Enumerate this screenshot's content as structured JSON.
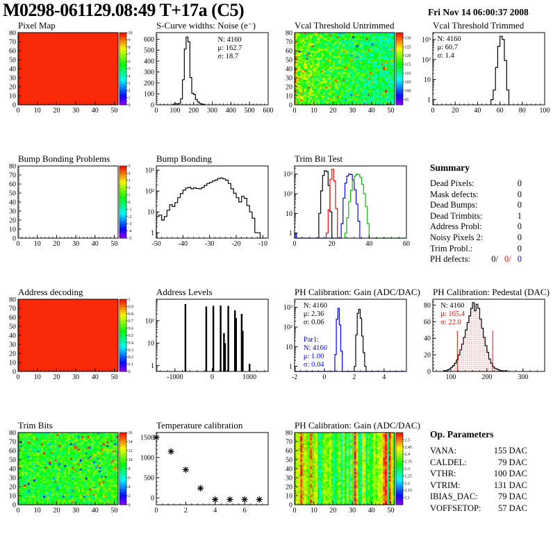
{
  "header": {
    "title": "M0298-061129.08:49 T+17a (C5)",
    "date": "Fri Nov 14 06:00:37 2008"
  },
  "colors": {
    "black": "#000000",
    "red": "#ff0000",
    "blue": "#0000ff",
    "green": "#00bf00"
  },
  "chart_data": [
    {
      "name": "pixel-map",
      "title": "Pixel Map",
      "type": "heatmap",
      "xlim": [
        0,
        52
      ],
      "ylim": [
        0,
        80
      ],
      "xticks": [
        0,
        10,
        20,
        30,
        40,
        50
      ],
      "xminor": 2,
      "yticks": [
        0,
        10,
        20,
        30,
        40,
        50,
        60,
        70,
        80
      ],
      "yminorstep": 2,
      "zmin": 0,
      "zmax": 10,
      "colorbar_ticks": [
        0,
        1,
        2,
        3,
        4,
        5,
        6,
        7,
        8,
        9,
        10
      ],
      "pattern": {
        "kind": "solid",
        "value": 0.97
      }
    },
    {
      "name": "scurve-noise",
      "title": "S-Curve widths: Noise (e⁻)",
      "type": "hist",
      "xlim": [
        0,
        600
      ],
      "xticks": [
        0,
        100,
        200,
        300,
        400,
        500,
        600
      ],
      "xminor": 20,
      "ylin": [
        0,
        660
      ],
      "yticks": [
        0,
        100,
        200,
        300,
        400,
        500,
        600
      ],
      "yminor": 20,
      "series": [
        {
          "color": "#000000",
          "start": 90,
          "width": 10,
          "values": [
            6,
            10,
            8,
            14,
            55,
            230,
            510,
            620,
            575,
            250,
            105,
            95,
            50,
            28,
            14,
            7,
            3
          ]
        }
      ],
      "stats": {
        "x": 0.55,
        "y": 0.04,
        "lines": [
          {
            "text": "N: 4160",
            "color": "#000000"
          },
          {
            "text": "μ: 162.7",
            "color": "#000000"
          },
          {
            "text": "σ: 18.7",
            "color": "#000000"
          }
        ]
      }
    },
    {
      "name": "vcal-threshold-untrimmed",
      "title": "Vcal Threshold Untrimmed",
      "type": "heatmap",
      "xlim": [
        0,
        52
      ],
      "ylim": [
        0,
        80
      ],
      "xticks": [
        0,
        10,
        20,
        30,
        40,
        50
      ],
      "xminor": 2,
      "yticks": [
        0,
        10,
        20,
        30,
        40,
        50,
        60,
        70,
        80
      ],
      "yminorstep": 2,
      "zmin": 92,
      "zmax": 133,
      "colorbar_ticks": [
        95,
        100,
        105,
        110,
        115,
        120,
        125,
        130
      ],
      "pattern": {
        "kind": "noise",
        "seed": 42,
        "mean": 0.55,
        "spread": 0.16,
        "xslope": -0.18,
        "outlier": 0.035,
        "edge": true
      }
    },
    {
      "name": "vcal-threshold-trimmed",
      "title": "Vcal Threshold Trimmed",
      "type": "hist",
      "xlim": [
        0,
        100
      ],
      "xticks": [
        0,
        20,
        40,
        60,
        80,
        100
      ],
      "xminor": 4,
      "ylog": [
        0.55,
        2200
      ],
      "yticks_log": [
        [
          1,
          "1"
        ],
        [
          10,
          "10"
        ],
        [
          100,
          "10²"
        ],
        [
          1000,
          "10³"
        ]
      ],
      "series": [
        {
          "color": "#000000",
          "start": 52,
          "width": 2,
          "values": [
            1,
            3,
            40,
            450,
            1450,
            1000,
            90,
            3
          ]
        }
      ],
      "stats": {
        "x": 0.04,
        "y": 0.03,
        "lines": [
          {
            "text": "N: 4160",
            "color": "#000000"
          },
          {
            "text": "μ: 60.7",
            "color": "#000000"
          },
          {
            "text": "σ:  1.4",
            "color": "#000000"
          }
        ]
      }
    },
    {
      "name": "bump-bonding-problems",
      "title": "Bump Bonding Problems",
      "type": "heatmap",
      "xlim": [
        0,
        52
      ],
      "ylim": [
        0,
        80
      ],
      "xticks": [
        0,
        10,
        20,
        30,
        40,
        50
      ],
      "xminor": 2,
      "yticks": [
        0,
        10,
        20,
        30,
        40,
        50,
        60,
        70,
        80
      ],
      "yminorstep": 2,
      "zmin": -5,
      "zmax": 5,
      "colorbar_ticks": [
        -5,
        -4,
        -3,
        -2,
        -1,
        0,
        1,
        2,
        3,
        4,
        5
      ],
      "pattern": {
        "kind": "empty"
      }
    },
    {
      "name": "bump-bonding",
      "title": "Bump Bonding",
      "type": "hist",
      "xlim": [
        -50,
        -8
      ],
      "xticks": [
        -50,
        -40,
        -30,
        -20,
        -10
      ],
      "xminor": 2,
      "ylog": [
        0.55,
        1600
      ],
      "yticks_log": [
        [
          1,
          "1"
        ],
        [
          10,
          "10"
        ],
        [
          100,
          "10²"
        ],
        [
          1000,
          "10³"
        ]
      ],
      "series": [
        {
          "color": "#000000",
          "start": -50,
          "width": 1,
          "values": [
            6,
            7,
            4,
            6,
            12,
            22,
            18,
            28,
            48,
            75,
            110,
            140,
            150,
            128,
            142,
            132,
            128,
            148,
            185,
            230,
            260,
            300,
            335,
            400,
            425,
            380,
            330,
            230,
            128,
            78,
            48,
            30,
            55,
            45,
            20,
            10,
            5,
            1,
            1
          ]
        }
      ]
    },
    {
      "name": "trim-bit-test",
      "title": "Trim Bit Test",
      "type": "hist",
      "xlim": [
        0,
        60
      ],
      "xticks": [
        0,
        20,
        40,
        60
      ],
      "xminor": 4,
      "ylog": [
        0.55,
        2600
      ],
      "yticks_log": [
        [
          1,
          "1"
        ],
        [
          10,
          "10"
        ],
        [
          100,
          "10²"
        ],
        [
          1000,
          "10³"
        ]
      ],
      "series": [
        {
          "color": "#000000",
          "start": 13,
          "width": 1,
          "values": [
            10,
            140,
            850,
            1500,
            1350,
            260,
            12
          ]
        },
        {
          "color": "#ff0000",
          "start": 17,
          "width": 1,
          "values": [
            1,
            15,
            550,
            1750,
            450,
            18
          ]
        },
        {
          "color": "#0000ff",
          "start": 0,
          "width": 1,
          "values": [
            1,
            0,
            0,
            0,
            0,
            0,
            0,
            0,
            0,
            0,
            0,
            0,
            0,
            0,
            0,
            0,
            0,
            0,
            0,
            0,
            0,
            0,
            0,
            0,
            0,
            3,
            60,
            350,
            800,
            1000,
            950,
            500,
            160,
            30,
            4,
            0
          ]
        },
        {
          "color": "#00bf00",
          "start": 27,
          "width": 1,
          "values": [
            1,
            6,
            40,
            150,
            420,
            800,
            1000,
            930,
            680,
            300,
            100,
            22,
            3,
            0,
            0,
            0,
            0,
            0,
            0,
            0,
            0,
            0,
            0,
            0,
            0,
            0,
            0,
            0,
            0,
            0,
            0,
            0,
            0
          ]
        }
      ]
    },
    {
      "name": "address-decoding",
      "title": "Address decoding",
      "type": "heatmap",
      "xlim": [
        0,
        52
      ],
      "ylim": [
        0,
        80
      ],
      "xticks": [
        0,
        10,
        20,
        30,
        40,
        50
      ],
      "xminor": 2,
      "yticks": [
        0,
        10,
        20,
        30,
        40,
        50,
        60,
        70,
        80
      ],
      "yminorstep": 2,
      "zmin": 0,
      "zmax": 1,
      "colorbar_ticks": [
        0,
        0.1,
        0.2,
        0.3,
        0.4,
        0.5,
        0.6,
        0.7,
        0.8,
        0.9,
        1
      ],
      "pattern": {
        "kind": "solid",
        "value": 0.97
      }
    },
    {
      "name": "address-levels",
      "title": "Address Levels",
      "type": "spikes",
      "xlim": [
        -1500,
        1500
      ],
      "xticks": [
        -1000,
        0,
        1000
      ],
      "xminor": 200,
      "ylog": [
        0.55,
        900
      ],
      "yticks_log": [
        [
          1,
          "1"
        ],
        [
          10,
          "10"
        ],
        [
          100,
          "10²"
        ]
      ],
      "spikes": [
        [
          -720,
          550
        ],
        [
          -160,
          430
        ],
        [
          30,
          460
        ],
        [
          225,
          470
        ],
        [
          315,
          28
        ],
        [
          345,
          10
        ],
        [
          430,
          450
        ],
        [
          610,
          290
        ],
        [
          640,
          130
        ],
        [
          790,
          200
        ],
        [
          818,
          35
        ],
        [
          1000,
          1.2
        ]
      ]
    },
    {
      "name": "ph-calibration-gain-hist",
      "title": "PH Calibration: Gain (ADC/DAC)",
      "type": "hist",
      "xlim": [
        -2,
        5.5
      ],
      "xticks": [
        -2,
        0,
        2,
        4
      ],
      "xminor": 0.4,
      "ylog": [
        0.55,
        2600
      ],
      "yticks_log": [
        [
          1,
          "1"
        ],
        [
          10,
          "10"
        ],
        [
          100,
          "10²"
        ],
        [
          1000,
          "10³"
        ]
      ],
      "series": [
        {
          "color": "#0000ff",
          "start": 0.7,
          "width": 0.1,
          "values": [
            4,
            250,
            900,
            130,
            6
          ],
          "baseline": true
        },
        {
          "color": "#000000",
          "start": 2.0,
          "width": 0.1,
          "values": [
            1,
            40,
            500,
            800,
            280,
            35,
            5,
            1
          ]
        }
      ],
      "stats": {
        "x": 0.08,
        "y": 0.03,
        "lines": [
          {
            "text": "N: 4160",
            "color": "#000000"
          },
          {
            "text": "μ: 2.36",
            "color": "#000000"
          },
          {
            "text": "σ: 0.06",
            "color": "#000000"
          }
        ]
      },
      "stats2": {
        "x": 0.08,
        "y": 0.5,
        "lines": [
          {
            "text": "Par1:",
            "color": "#0000ff"
          },
          {
            "text": "N: 4160",
            "color": "#0000ff"
          },
          {
            "text": "μ: 1.00",
            "color": "#0000ff"
          },
          {
            "text": "σ: 0.04",
            "color": "#0000ff"
          }
        ]
      }
    },
    {
      "name": "ph-calibration-pedestal",
      "title": "PH Calibration: Pedestal (DAC)",
      "type": "hist",
      "xlim": [
        50,
        360
      ],
      "xticks": [
        100,
        200,
        300
      ],
      "xminor": 20,
      "ylin": [
        0,
        87
      ],
      "yticks": [
        0,
        20,
        40,
        60,
        80
      ],
      "yminor": 4,
      "series": [
        {
          "color": "#000000",
          "start": 80,
          "width": 5,
          "fill": "reddots",
          "values": [
            1,
            1,
            2,
            3,
            5,
            7,
            10,
            14,
            20,
            26,
            33,
            41,
            50,
            59,
            67,
            76,
            83,
            73,
            81,
            76,
            63,
            52,
            41,
            31,
            23,
            15,
            10,
            6,
            4,
            3,
            2,
            1,
            1,
            0,
            1
          ]
        }
      ],
      "vlines": [
        {
          "x": 118,
          "y": 49,
          "color": "#ff0000"
        },
        {
          "x": 216,
          "y": 49,
          "color": "#ff0000"
        }
      ],
      "stats": {
        "x": 0.07,
        "y": 0.03,
        "lines": [
          {
            "text": "N: 4160",
            "color": "#000000"
          },
          {
            "text": "μ: 165.4",
            "color": "#ff0000"
          },
          {
            "text": "σ: 22.0",
            "color": "#ff0000"
          }
        ]
      }
    },
    {
      "name": "trim-bits",
      "title": "Trim Bits",
      "type": "heatmap",
      "xlim": [
        0,
        52
      ],
      "ylim": [
        0,
        80
      ],
      "xticks": [
        0,
        10,
        20,
        30,
        40,
        50
      ],
      "xminor": 2,
      "yticks": [
        0,
        10,
        20,
        30,
        40,
        50,
        60,
        70,
        80
      ],
      "yminorstep": 2,
      "zmin": 0,
      "zmax": 16,
      "colorbar_ticks": [
        0,
        2,
        4,
        6,
        8,
        10,
        12,
        14,
        16
      ],
      "pattern": {
        "kind": "noise",
        "seed": 7,
        "mean": 0.57,
        "spread": 0.13,
        "xslope": 0.03,
        "outlier": 0.05
      }
    },
    {
      "name": "temperature-calibration",
      "title": "Temperature calibration",
      "type": "scatter",
      "xlim": [
        0,
        7.6
      ],
      "xticks": [
        0,
        2,
        4,
        6
      ],
      "xminor": 0.4,
      "ylin": [
        -170,
        1620
      ],
      "yticks": [
        0,
        500,
        1000,
        1500
      ],
      "yminor": 100,
      "points": [
        [
          0,
          1500
        ],
        [
          1,
          1150
        ],
        [
          2,
          700
        ],
        [
          3,
          240
        ],
        [
          4,
          -40
        ],
        [
          5,
          -40
        ],
        [
          6,
          -40
        ],
        [
          7,
          -40
        ]
      ],
      "marker": "asterisk"
    },
    {
      "name": "ph-calibration-gain-map",
      "title": "PH Calibration: Gain (ADC/DAC)",
      "type": "heatmap",
      "xlim": [
        0,
        52
      ],
      "ylim": [
        0,
        80
      ],
      "xticks": [
        0,
        10,
        20,
        30,
        40,
        50
      ],
      "xminor": 2,
      "yticks": [
        0,
        10,
        20,
        30,
        40,
        50,
        60,
        70,
        80
      ],
      "yminorstep": 2,
      "zmin": 2.05,
      "zmax": 2.55,
      "colorbar_ticks": [
        2.1,
        2.15,
        2.2,
        2.25,
        2.3,
        2.35,
        2.4,
        2.45,
        2.5
      ],
      "pattern": {
        "kind": "stripes",
        "seed": 11
      }
    }
  ],
  "summary": {
    "title": "Summary",
    "rows": [
      {
        "label": "Dead Pixels:",
        "value": "0"
      },
      {
        "label": "Mask defects:",
        "value": "0"
      },
      {
        "label": "Dead Bumps:",
        "value": "0"
      },
      {
        "label": "Dead Trimbits:",
        "value": "1"
      },
      {
        "label": "Address Probl:",
        "value": "0"
      },
      {
        "label": "Noisy Pixels 2:",
        "value": "0"
      },
      {
        "label": "Trim Probl.:",
        "value": "0"
      }
    ],
    "ph_defects": {
      "label": "PH defects:",
      "values": [
        "0/",
        "0/",
        "0"
      ],
      "value_colors": [
        "#000000",
        "#ff0000",
        "#0000ff"
      ]
    }
  },
  "op_parameters": {
    "title": "Op. Parameters",
    "rows": [
      {
        "label": "VANA:",
        "value": "155 DAC"
      },
      {
        "label": "CALDEL:",
        "value": "79 DAC"
      },
      {
        "label": "VTHR:",
        "value": "100 DAC"
      },
      {
        "label": "VTRIM:",
        "value": "131 DAC"
      },
      {
        "label": "IBIAS_DAC:",
        "value": "79 DAC"
      },
      {
        "label": "VOFFSETOP:",
        "value": "57 DAC"
      }
    ]
  }
}
